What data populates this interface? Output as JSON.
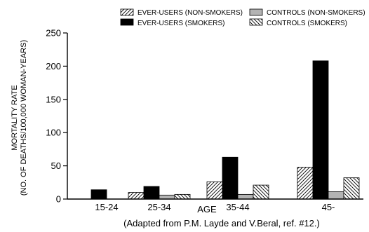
{
  "chart_data": {
    "type": "bar",
    "title": "",
    "xlabel": "AGE",
    "ylabel_lines": [
      "MORTALITY RATE",
      "(NO. OF DEATHS/100,000 WOMAN-YEARS)"
    ],
    "categories": [
      "15-24",
      "25-34",
      "35-44",
      "45-"
    ],
    "ylim": [
      0,
      250
    ],
    "yticks": [
      0,
      50,
      100,
      150,
      200,
      250
    ],
    "grid": false,
    "legend_position": "top-right",
    "series": [
      {
        "name": "EVER-USERS (NON-SMOKERS)",
        "pattern": "hatch-right",
        "values": [
          0,
          10,
          26,
          48
        ]
      },
      {
        "name": "EVER-USERS (SMOKERS)",
        "pattern": "solid-black",
        "values": [
          14,
          19,
          63,
          208
        ]
      },
      {
        "name": "CONTROLS (NON-SMOKERS)",
        "pattern": "solid-gray",
        "values": [
          0,
          6,
          7,
          11
        ]
      },
      {
        "name": "CONTROLS (SMOKERS)",
        "pattern": "hatch-left",
        "values": [
          0,
          7,
          21,
          32
        ]
      }
    ],
    "note": "(Adapted from P.M. Layde and V.Beral, ref. #12.)",
    "colors": {
      "black": "#000000",
      "gray": "#b3b3b3",
      "white": "#ffffff"
    }
  }
}
